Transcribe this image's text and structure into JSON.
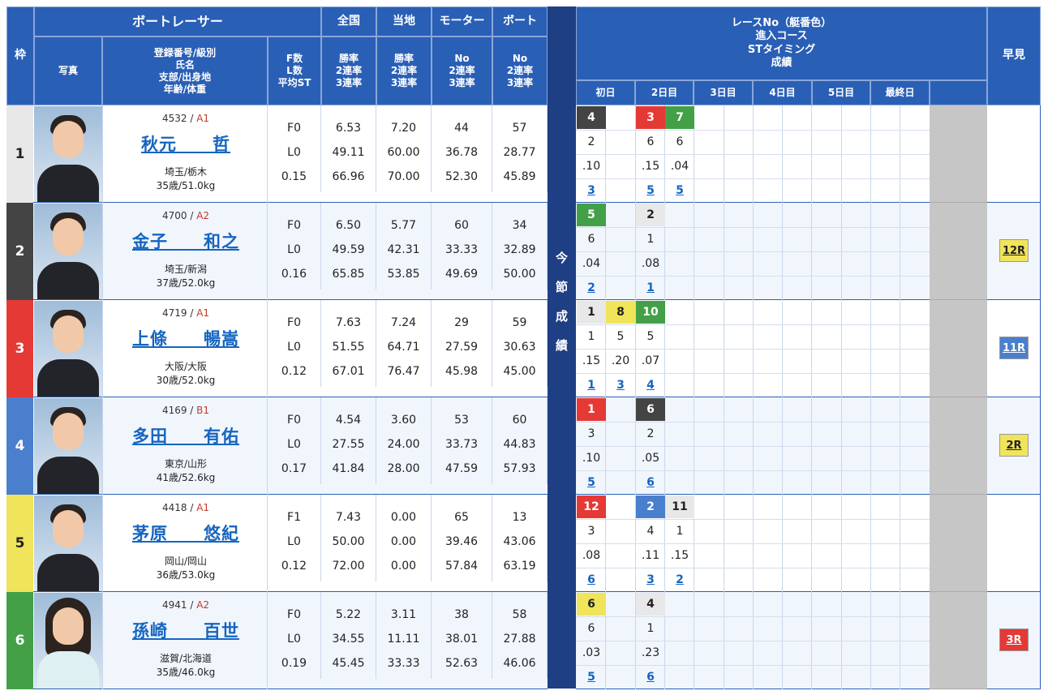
{
  "headers": {
    "waku": "枠",
    "racer": "ボートレーサー",
    "photo": "写真",
    "info": "登録番号/級別\n氏名\n支部/出身地\n年齢/体重",
    "fl": "F数\nL数\n平均ST",
    "zenkoku": "全国",
    "touchi": "当地",
    "motor": "モーター",
    "boat": "ボート",
    "rate": "勝率\n2連率\n3連率",
    "no": "No\n2連率\n3連率",
    "race_title": "レースNo（艇番色）\n進入コース\nSTタイミング\n成績",
    "hayami": "早見",
    "side": "今\n節\n成\n績",
    "days": [
      "初日",
      "2日目",
      "3日目",
      "4日目",
      "5日目",
      "最終日"
    ]
  },
  "colors": {
    "frame": [
      "#e8e8e8",
      "#444444",
      "#e53935",
      "#4a7fce",
      "#f0e45a",
      "#43a047"
    ],
    "frame_text": [
      "#222",
      "#fff",
      "#fff",
      "#fff",
      "#222",
      "#fff"
    ]
  },
  "racers": [
    {
      "frame": "1",
      "reg": "4532",
      "cls": "A1",
      "name": "秋元　　哲",
      "branch": "埼玉/栃木",
      "age": "35歳/51.0kg",
      "f": "F0",
      "l": "L0",
      "st": "0.15",
      "z": [
        "6.53",
        "49.11",
        "66.96"
      ],
      "t": [
        "7.20",
        "60.00",
        "70.00"
      ],
      "m": [
        "44",
        "36.78",
        "52.30"
      ],
      "b": [
        "57",
        "28.77",
        "45.89"
      ],
      "gender": "m",
      "races": [
        {
          "col": 0,
          "no": "4",
          "c": "#444",
          "tc": "#fff",
          "course": "2",
          "st": ".10",
          "res": "3"
        },
        {
          "col": 2,
          "no": "3",
          "c": "#e53935",
          "tc": "#fff",
          "course": "6",
          "st": ".15",
          "res": "5"
        },
        {
          "col": 3,
          "no": "7",
          "c": "#43a047",
          "tc": "#fff",
          "course": "6",
          "st": ".04",
          "res": "5"
        }
      ],
      "hayami": ""
    },
    {
      "frame": "2",
      "reg": "4700",
      "cls": "A2",
      "name": "金子　　和之",
      "branch": "埼玉/新潟",
      "age": "37歳/52.0kg",
      "f": "F0",
      "l": "L0",
      "st": "0.16",
      "z": [
        "6.50",
        "49.59",
        "65.85"
      ],
      "t": [
        "5.77",
        "42.31",
        "53.85"
      ],
      "m": [
        "60",
        "33.33",
        "49.69"
      ],
      "b": [
        "34",
        "32.89",
        "50.00"
      ],
      "gender": "m",
      "races": [
        {
          "col": 0,
          "no": "5",
          "c": "#43a047",
          "tc": "#fff",
          "course": "6",
          "st": ".04",
          "res": "2"
        },
        {
          "col": 2,
          "no": "2",
          "c": "#e8e8e8",
          "tc": "#222",
          "course": "1",
          "st": ".08",
          "res": "1"
        }
      ],
      "hayami": "12R",
      "hc": "#f0e45a",
      "htc": "#222"
    },
    {
      "frame": "3",
      "reg": "4719",
      "cls": "A1",
      "name": "上條　　暢嵩",
      "branch": "大阪/大阪",
      "age": "30歳/52.0kg",
      "f": "F0",
      "l": "L0",
      "st": "0.12",
      "z": [
        "7.63",
        "51.55",
        "67.01"
      ],
      "t": [
        "7.24",
        "64.71",
        "76.47"
      ],
      "m": [
        "29",
        "27.59",
        "45.98"
      ],
      "b": [
        "59",
        "30.63",
        "45.00"
      ],
      "gender": "m",
      "races": [
        {
          "col": 0,
          "no": "1",
          "c": "#e8e8e8",
          "tc": "#222",
          "course": "1",
          "st": ".15",
          "res": "1"
        },
        {
          "col": 1,
          "no": "8",
          "c": "#f0e45a",
          "tc": "#222",
          "course": "5",
          "st": ".20",
          "res": "3"
        },
        {
          "col": 2,
          "no": "10",
          "c": "#43a047",
          "tc": "#fff",
          "course": "5",
          "st": ".07",
          "res": "4"
        }
      ],
      "hayami": "11R",
      "hc": "#4a7fce",
      "htc": "#fff"
    },
    {
      "frame": "4",
      "reg": "4169",
      "cls": "B1",
      "name": "多田　　有佑",
      "branch": "東京/山形",
      "age": "41歳/52.6kg",
      "f": "F0",
      "l": "L0",
      "st": "0.17",
      "z": [
        "4.54",
        "27.55",
        "41.84"
      ],
      "t": [
        "3.60",
        "24.00",
        "28.00"
      ],
      "m": [
        "53",
        "33.73",
        "47.59"
      ],
      "b": [
        "60",
        "44.83",
        "57.93"
      ],
      "gender": "m",
      "races": [
        {
          "col": 0,
          "no": "1",
          "c": "#e53935",
          "tc": "#fff",
          "course": "3",
          "st": ".10",
          "res": "5"
        },
        {
          "col": 2,
          "no": "6",
          "c": "#444",
          "tc": "#fff",
          "course": "2",
          "st": ".05",
          "res": "6"
        }
      ],
      "hayami": "2R",
      "hc": "#f0e45a",
      "htc": "#222"
    },
    {
      "frame": "5",
      "reg": "4418",
      "cls": "A1",
      "name": "茅原　　悠紀",
      "branch": "岡山/岡山",
      "age": "36歳/53.0kg",
      "f": "F1",
      "l": "L0",
      "st": "0.12",
      "z": [
        "7.43",
        "50.00",
        "72.00"
      ],
      "t": [
        "0.00",
        "0.00",
        "0.00"
      ],
      "m": [
        "65",
        "39.46",
        "57.84"
      ],
      "b": [
        "13",
        "43.06",
        "63.19"
      ],
      "gender": "m",
      "races": [
        {
          "col": 0,
          "no": "12",
          "c": "#e53935",
          "tc": "#fff",
          "course": "3",
          "st": ".08",
          "res": "6"
        },
        {
          "col": 2,
          "no": "2",
          "c": "#4a7fce",
          "tc": "#fff",
          "course": "4",
          "st": ".11",
          "res": "3"
        },
        {
          "col": 3,
          "no": "11",
          "c": "#e8e8e8",
          "tc": "#222",
          "course": "1",
          "st": ".15",
          "res": "2"
        }
      ],
      "hayami": ""
    },
    {
      "frame": "6",
      "reg": "4941",
      "cls": "A2",
      "name": "孫崎　　百世",
      "branch": "滋賀/北海道",
      "age": "35歳/46.0kg",
      "f": "F0",
      "l": "L0",
      "st": "0.19",
      "z": [
        "5.22",
        "34.55",
        "45.45"
      ],
      "t": [
        "3.11",
        "11.11",
        "33.33"
      ],
      "m": [
        "38",
        "38.01",
        "52.63"
      ],
      "b": [
        "58",
        "27.88",
        "46.06"
      ],
      "gender": "f",
      "races": [
        {
          "col": 0,
          "no": "6",
          "c": "#f0e45a",
          "tc": "#222",
          "course": "6",
          "st": ".03",
          "res": "5"
        },
        {
          "col": 2,
          "no": "4",
          "c": "#e8e8e8",
          "tc": "#222",
          "course": "1",
          "st": ".23",
          "res": "6"
        }
      ],
      "hayami": "3R",
      "hc": "#e53935",
      "htc": "#fff"
    }
  ]
}
